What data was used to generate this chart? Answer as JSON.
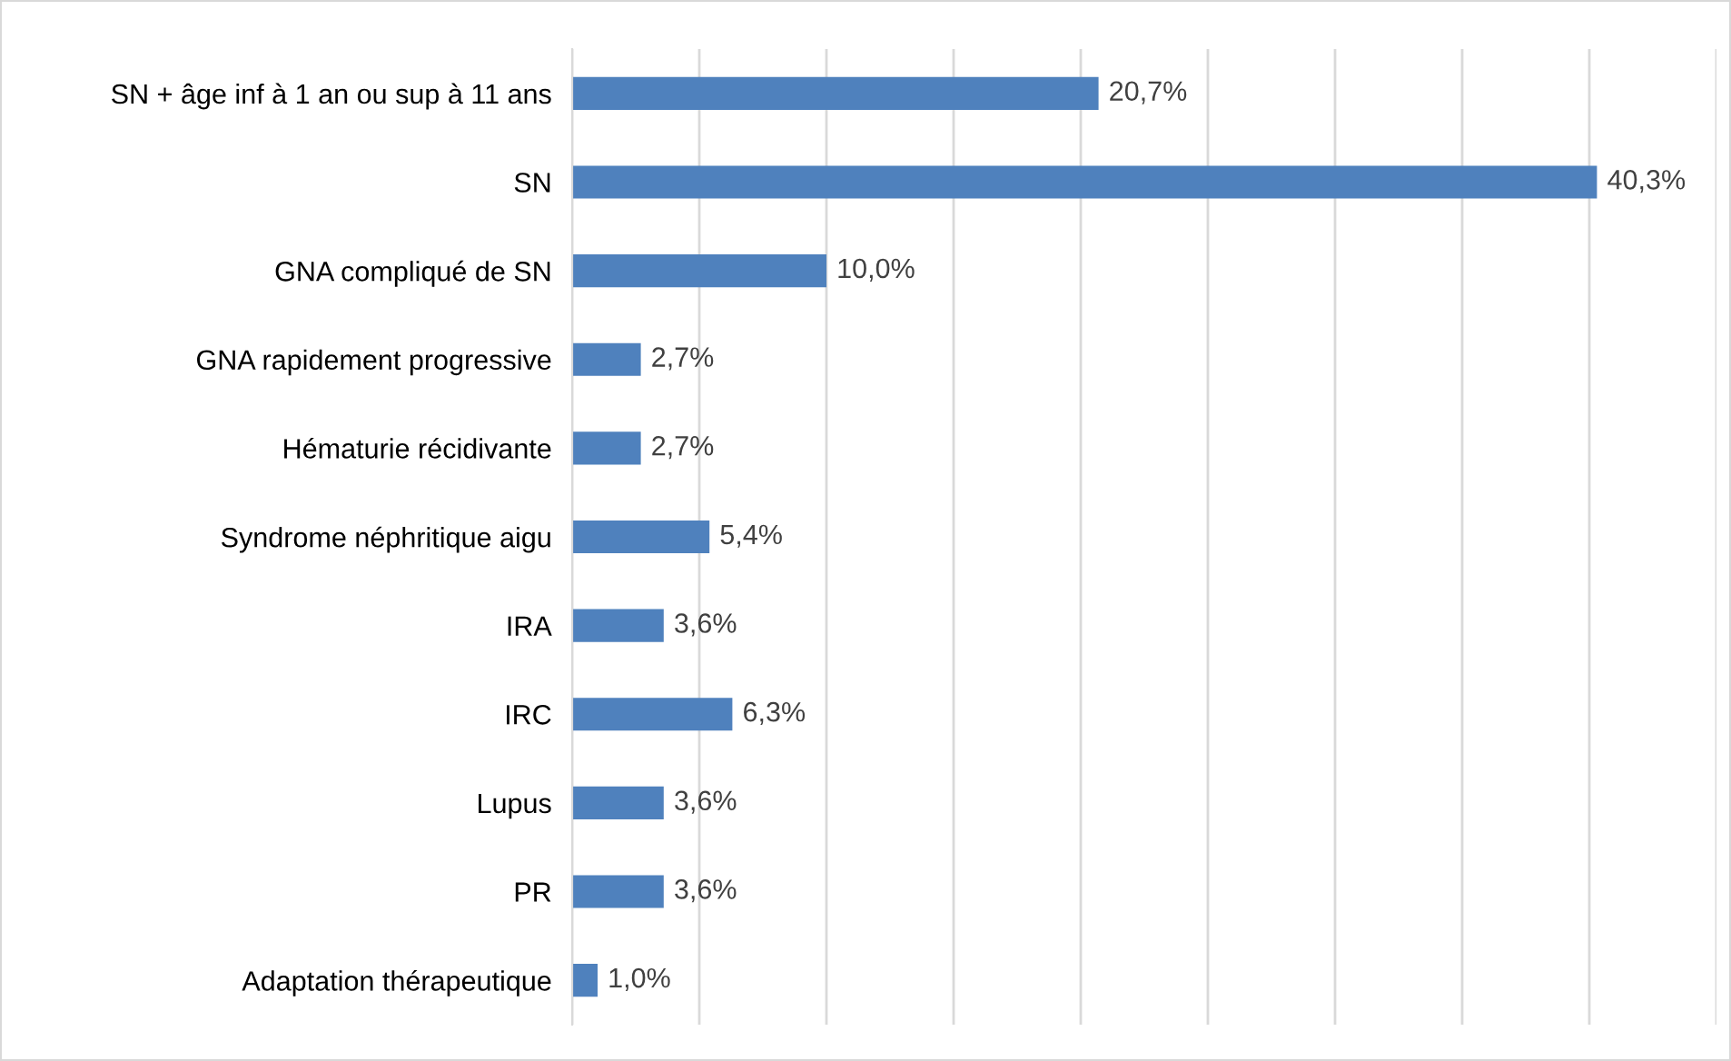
{
  "chart_data": {
    "type": "bar",
    "orientation": "horizontal",
    "categories": [
      "SN + âge inf à 1 an ou sup à 11 ans",
      "SN",
      "GNA compliqué de SN",
      "GNA rapidement progressive",
      "Hématurie récidivante",
      "Syndrome néphritique aigu",
      "IRA",
      "IRC",
      "Lupus",
      "PR",
      "Adaptation thérapeutique"
    ],
    "values": [
      20.7,
      40.3,
      10.0,
      2.7,
      2.7,
      5.4,
      3.6,
      6.3,
      3.6,
      3.6,
      1.0
    ],
    "value_labels": [
      "20,7%",
      "40,3%",
      "10,0%",
      "2,7%",
      "2,7%",
      "5,4%",
      "3,6%",
      "6,3%",
      "3,6%",
      "3,6%",
      "1,0%"
    ],
    "color": "#4f81bd",
    "xlim": [
      0,
      45
    ],
    "xticks": [
      {
        "value": 0,
        "label": null
      },
      {
        "value": 5,
        "label": null
      },
      {
        "value": 10,
        "label": null
      },
      {
        "value": 15,
        "label": null
      },
      {
        "value": 20,
        "label": null
      },
      {
        "value": 25,
        "label": null
      },
      {
        "value": 30,
        "label": null
      },
      {
        "value": 35,
        "label": null
      },
      {
        "value": 40,
        "label": null
      },
      {
        "value": 45,
        "label": null
      }
    ],
    "grid": "x",
    "legend": false,
    "tick_labels": "y"
  }
}
